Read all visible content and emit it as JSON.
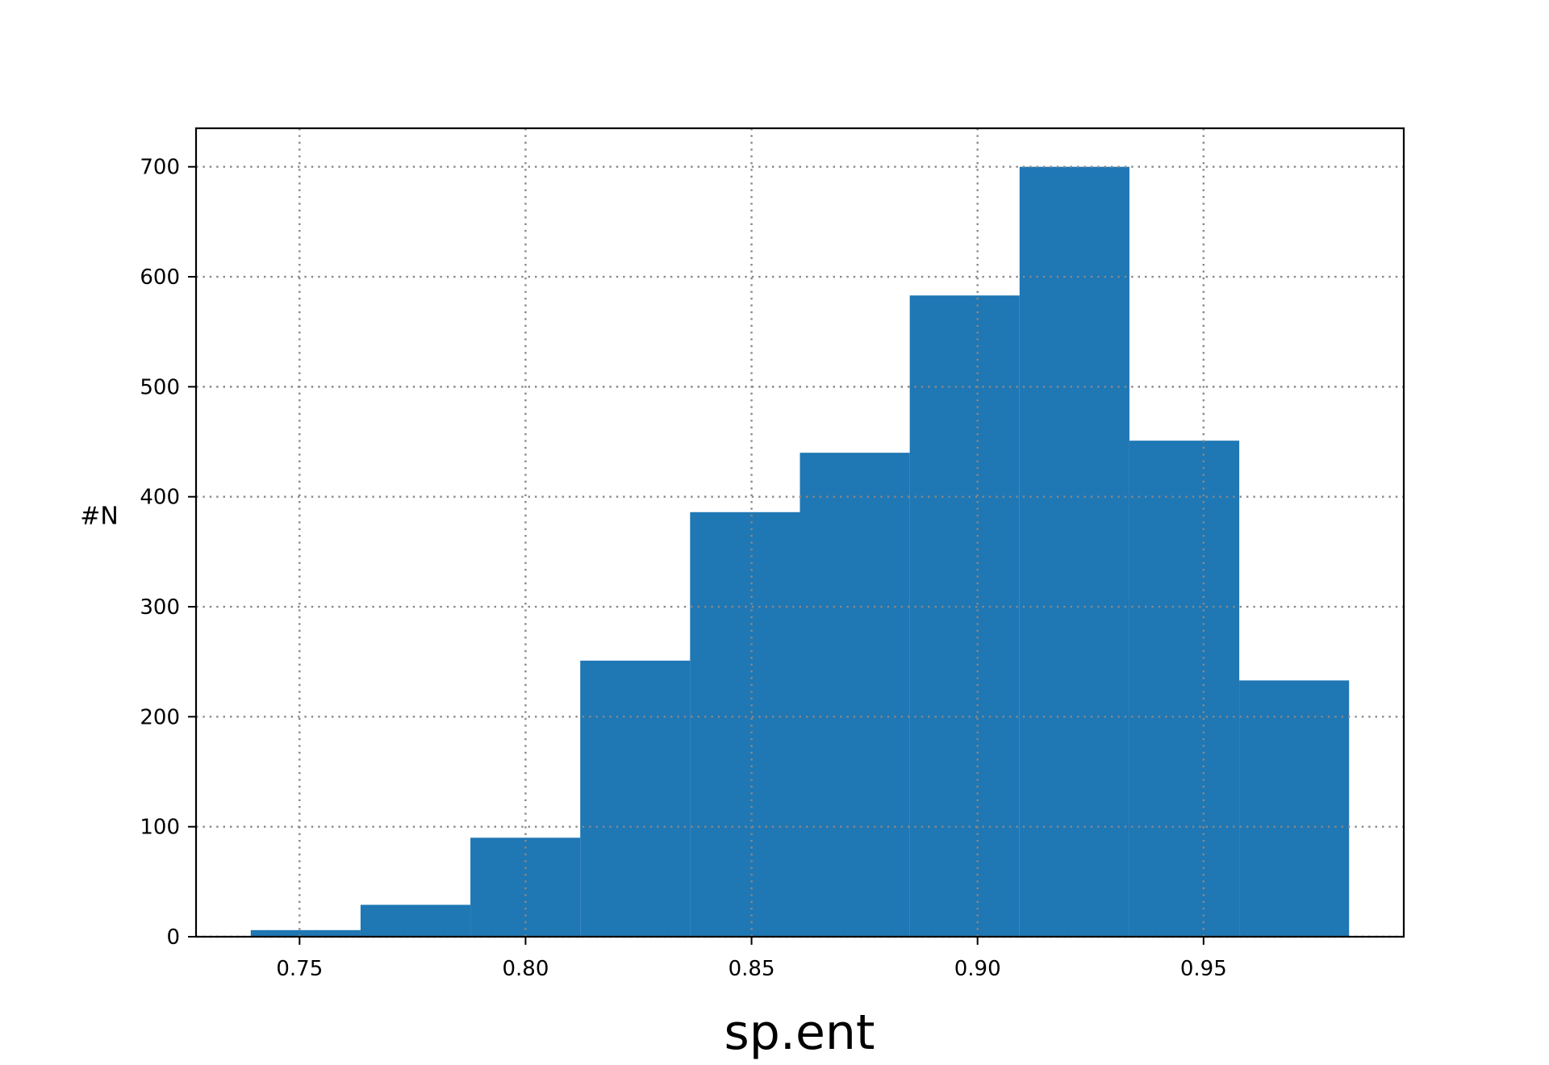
{
  "chart_data": {
    "type": "bar",
    "title": "",
    "xlabel": "sp.ent",
    "ylabel": "#N",
    "bins": [
      {
        "x0": 0.7392,
        "x1": 0.7635,
        "count": 6
      },
      {
        "x0": 0.7635,
        "x1": 0.7878,
        "count": 29
      },
      {
        "x0": 0.7878,
        "x1": 0.8121,
        "count": 90
      },
      {
        "x0": 0.8121,
        "x1": 0.8364,
        "count": 251
      },
      {
        "x0": 0.8364,
        "x1": 0.8607,
        "count": 386
      },
      {
        "x0": 0.8607,
        "x1": 0.885,
        "count": 440
      },
      {
        "x0": 0.885,
        "x1": 0.9093,
        "count": 583
      },
      {
        "x0": 0.9093,
        "x1": 0.9336,
        "count": 700
      },
      {
        "x0": 0.9336,
        "x1": 0.9579,
        "count": 451
      },
      {
        "x0": 0.9579,
        "x1": 0.9822,
        "count": 233
      }
    ],
    "xlim": [
      0.7271,
      0.9943
    ],
    "ylim": [
      0,
      735
    ],
    "x_ticks": [
      0.75,
      0.8,
      0.85,
      0.9,
      0.95
    ],
    "x_tick_labels": [
      "0.75",
      "0.80",
      "0.85",
      "0.90",
      "0.95"
    ],
    "y_ticks": [
      0,
      100,
      200,
      300,
      400,
      500,
      600,
      700
    ],
    "y_tick_labels": [
      "0",
      "100",
      "200",
      "300",
      "400",
      "500",
      "600",
      "700"
    ],
    "grid": true,
    "bar_color": "#1f77b4",
    "grid_color": "#888888"
  }
}
